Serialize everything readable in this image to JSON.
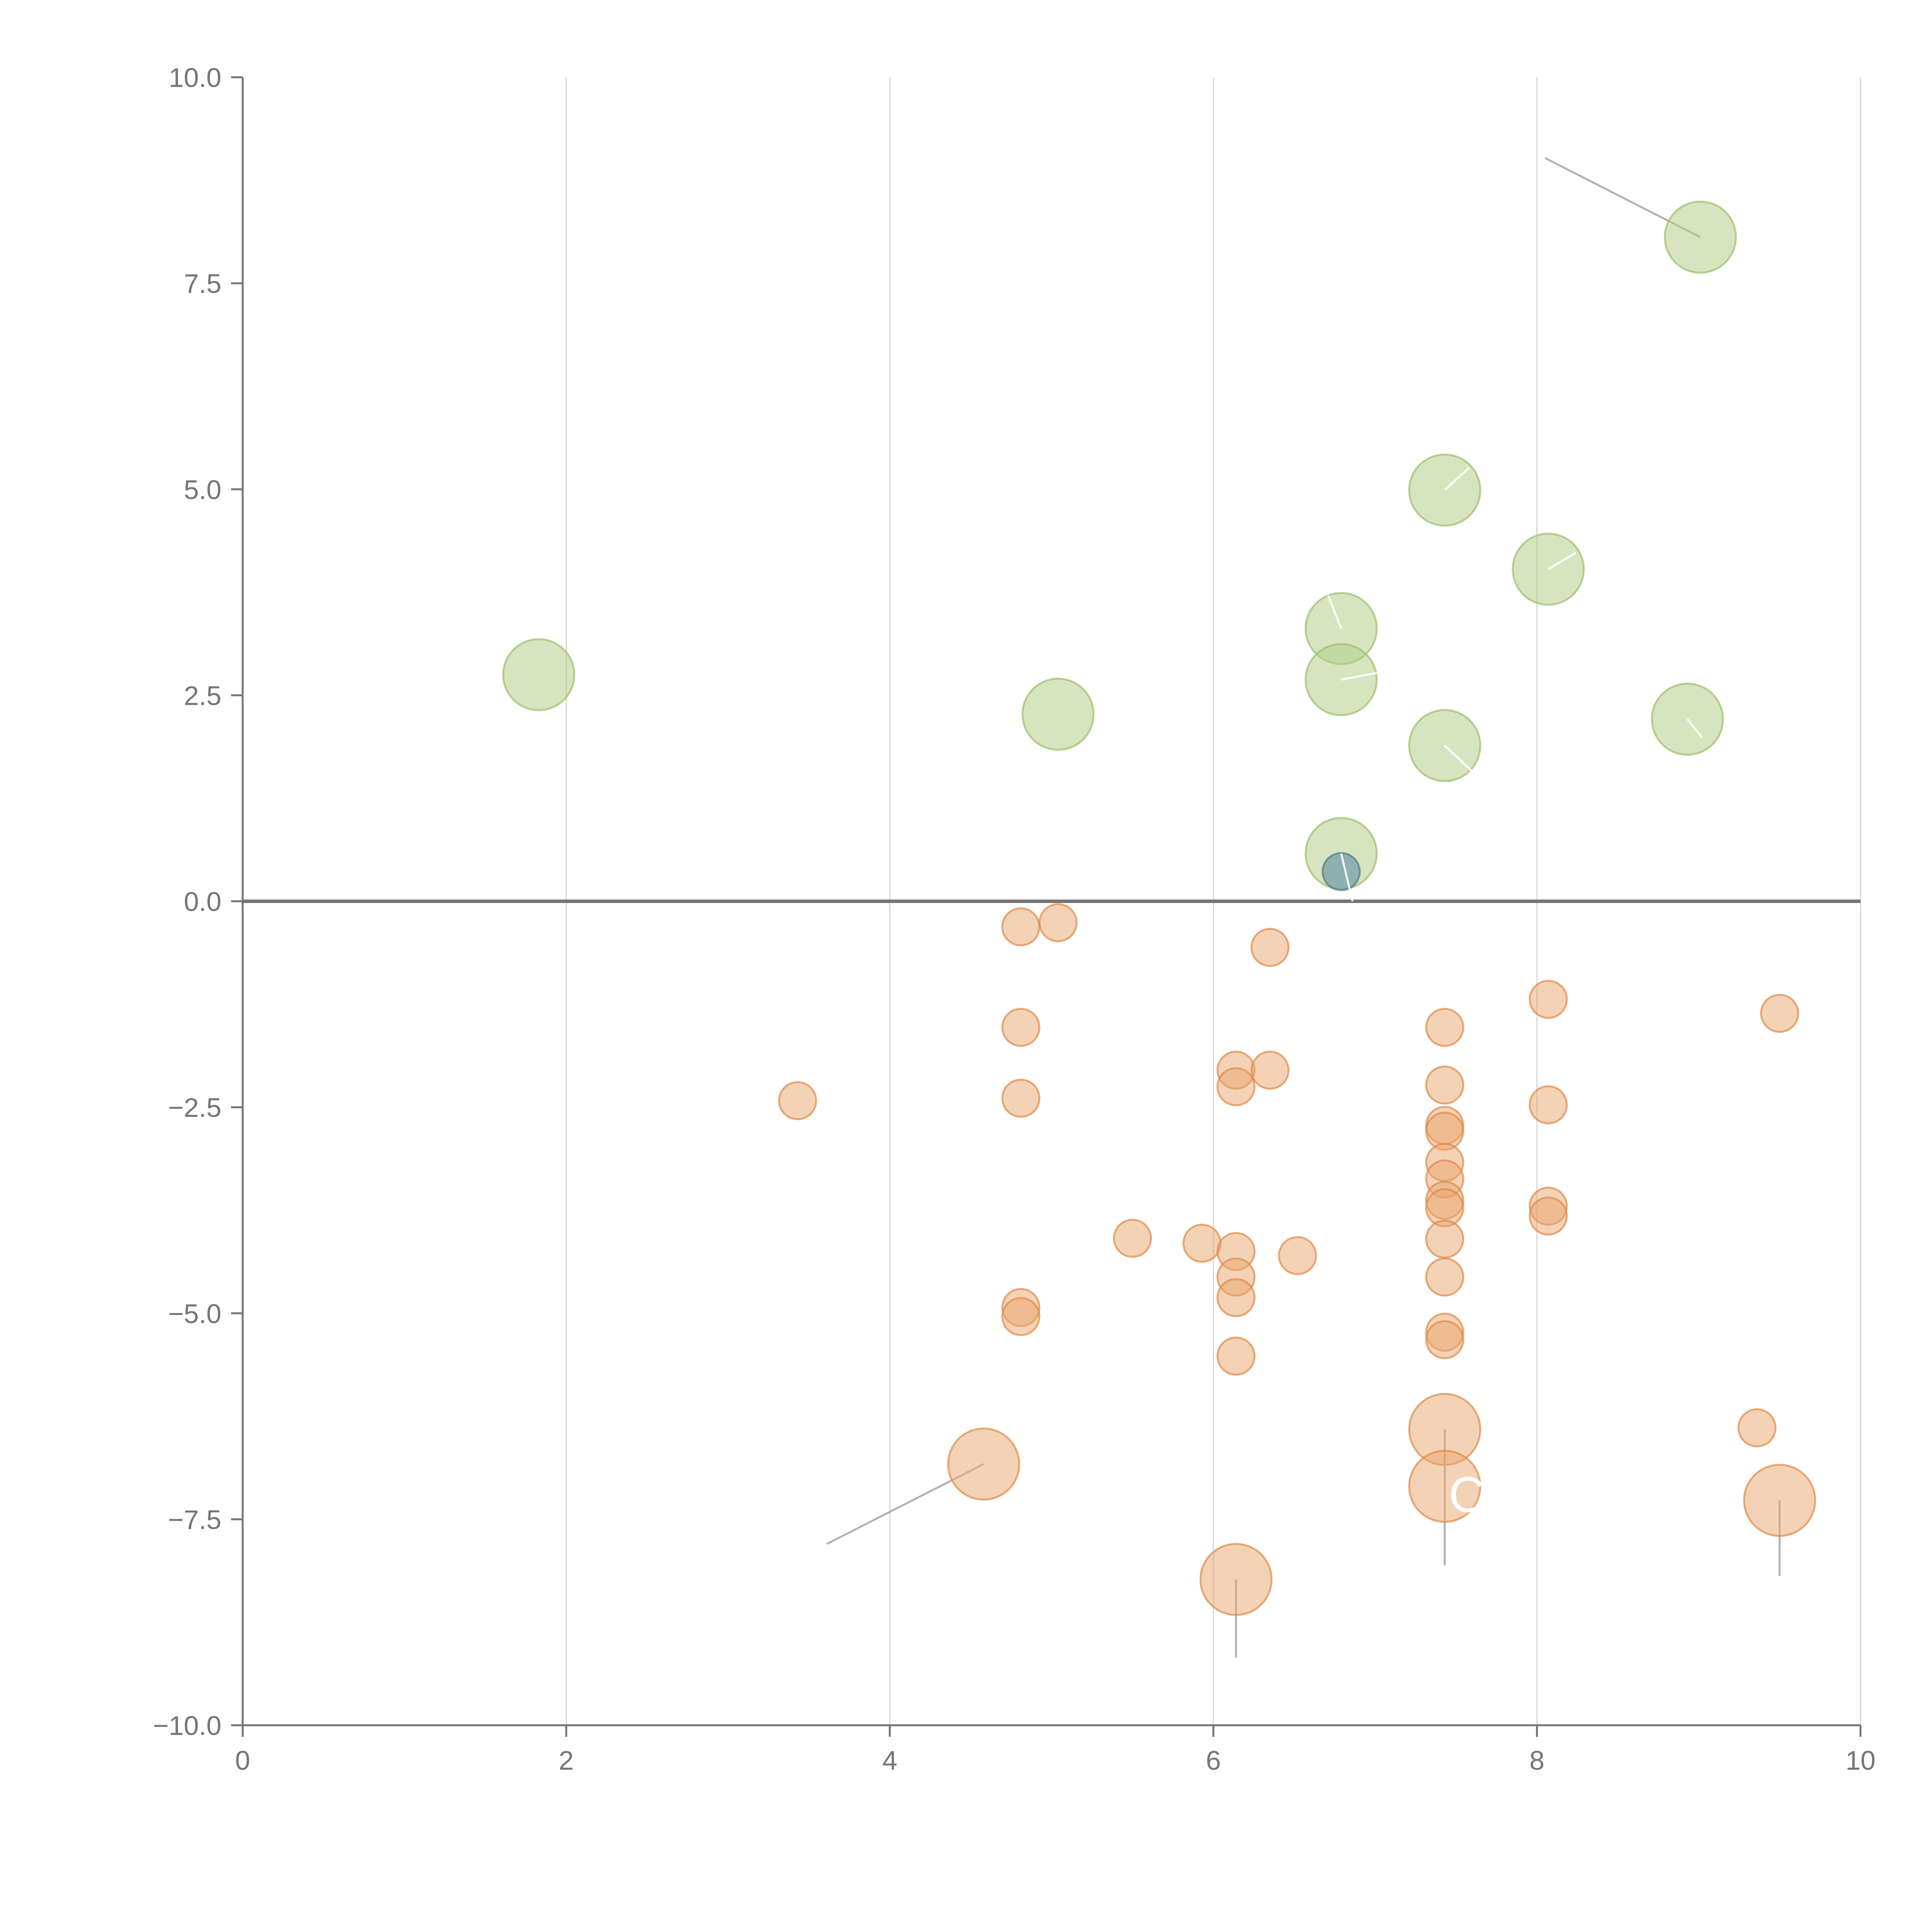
{
  "chart_data": {
    "type": "scatter",
    "subtype": "bubble",
    "title": "",
    "xlabel": "",
    "ylabel": "",
    "xlim": [
      0,
      10
    ],
    "ylim": [
      -10,
      10
    ],
    "x_ticks": [
      0,
      2,
      4,
      6,
      8,
      10
    ],
    "y_ticks": [
      10,
      7.5,
      5,
      2.5,
      0,
      -2.5,
      -5,
      -7.5,
      -10
    ],
    "x_tick_labels": [
      "0",
      "2",
      "4",
      "6",
      "8",
      "10"
    ],
    "y_tick_labels": [
      "10.0",
      "7.5",
      "5.0",
      "2.5",
      "0.0",
      "−2.5",
      "−5.0",
      "−7.5",
      "−10.0"
    ],
    "vertical_gridlines": true,
    "zero_line": true,
    "colors": {
      "positive": "#b5d08a",
      "positive_stroke": "#9cbf6b",
      "negative": "#e9a56e",
      "negative_stroke": "#de8a4a",
      "highlight": "#6f9aa6",
      "highlight_stroke": "#4f7a87",
      "axis": "#757575",
      "grid": "#d6d6d6",
      "leader": "#9e9e9e"
    },
    "series": [
      {
        "name": "positive",
        "points": [
          {
            "x": 1.83,
            "y": 2.75,
            "size": "large"
          },
          {
            "x": 5.04,
            "y": 2.27,
            "size": "large"
          },
          {
            "x": 6.79,
            "y": 3.31,
            "size": "large"
          },
          {
            "x": 6.79,
            "y": 2.69,
            "size": "large"
          },
          {
            "x": 6.79,
            "y": 0.58,
            "size": "large"
          },
          {
            "x": 7.43,
            "y": 4.99,
            "size": "large"
          },
          {
            "x": 7.43,
            "y": 1.89,
            "size": "large"
          },
          {
            "x": 8.07,
            "y": 4.03,
            "size": "large"
          },
          {
            "x": 8.93,
            "y": 2.21,
            "size": "large"
          },
          {
            "x": 9.01,
            "y": 8.06,
            "size": "large"
          }
        ]
      },
      {
        "name": "negative",
        "points": [
          {
            "x": 3.43,
            "y": -2.42,
            "size": "small"
          },
          {
            "x": 4.81,
            "y": -0.31,
            "size": "small"
          },
          {
            "x": 4.81,
            "y": -1.53,
            "size": "small"
          },
          {
            "x": 4.81,
            "y": -2.39,
            "size": "small"
          },
          {
            "x": 4.81,
            "y": -4.93,
            "size": "small"
          },
          {
            "x": 4.81,
            "y": -5.04,
            "size": "small"
          },
          {
            "x": 5.04,
            "y": -0.26,
            "size": "small"
          },
          {
            "x": 5.5,
            "y": -4.09,
            "size": "small"
          },
          {
            "x": 5.93,
            "y": -4.15,
            "size": "small"
          },
          {
            "x": 6.14,
            "y": -2.05,
            "size": "small"
          },
          {
            "x": 6.14,
            "y": -2.25,
            "size": "small"
          },
          {
            "x": 6.14,
            "y": -4.25,
            "size": "small"
          },
          {
            "x": 6.14,
            "y": -4.56,
            "size": "small"
          },
          {
            "x": 6.14,
            "y": -4.81,
            "size": "small"
          },
          {
            "x": 6.14,
            "y": -5.52,
            "size": "small"
          },
          {
            "x": 6.35,
            "y": -0.56,
            "size": "small"
          },
          {
            "x": 6.35,
            "y": -2.05,
            "size": "small"
          },
          {
            "x": 6.52,
            "y": -4.3,
            "size": "small"
          },
          {
            "x": 7.43,
            "y": -1.53,
            "size": "small"
          },
          {
            "x": 7.43,
            "y": -2.23,
            "size": "small"
          },
          {
            "x": 7.43,
            "y": -2.72,
            "size": "small"
          },
          {
            "x": 7.43,
            "y": -2.79,
            "size": "small"
          },
          {
            "x": 7.43,
            "y": -3.17,
            "size": "small"
          },
          {
            "x": 7.43,
            "y": -3.37,
            "size": "small"
          },
          {
            "x": 7.43,
            "y": -3.63,
            "size": "small"
          },
          {
            "x": 7.43,
            "y": -3.72,
            "size": "small"
          },
          {
            "x": 7.43,
            "y": -4.1,
            "size": "small"
          },
          {
            "x": 7.43,
            "y": -4.56,
            "size": "small"
          },
          {
            "x": 7.43,
            "y": -5.23,
            "size": "small"
          },
          {
            "x": 7.43,
            "y": -5.32,
            "size": "small"
          },
          {
            "x": 8.07,
            "y": -1.19,
            "size": "small"
          },
          {
            "x": 8.07,
            "y": -2.47,
            "size": "small"
          },
          {
            "x": 8.07,
            "y": -3.7,
            "size": "small"
          },
          {
            "x": 8.07,
            "y": -3.82,
            "size": "small"
          },
          {
            "x": 9.36,
            "y": -6.39,
            "size": "small"
          },
          {
            "x": 9.5,
            "y": -1.36,
            "size": "small"
          },
          {
            "x": 4.58,
            "y": -6.83,
            "size": "large"
          },
          {
            "x": 6.14,
            "y": -8.23,
            "size": "large"
          },
          {
            "x": 7.43,
            "y": -6.41,
            "size": "large"
          },
          {
            "x": 7.43,
            "y": -7.1,
            "size": "large"
          },
          {
            "x": 9.5,
            "y": -7.27,
            "size": "large"
          }
        ]
      },
      {
        "name": "highlight",
        "points": [
          {
            "x": 6.79,
            "y": 0.36,
            "size": "small"
          }
        ]
      }
    ],
    "leader_lines": [
      {
        "from": [
          9.01,
          8.06
        ],
        "to": [
          8.05,
          9.02
        ],
        "color": "leader"
      },
      {
        "from": [
          4.58,
          -6.83
        ],
        "to": [
          3.61,
          -7.8
        ],
        "color": "leader"
      },
      {
        "from": [
          6.14,
          -8.23
        ],
        "to": [
          6.14,
          -9.18
        ],
        "color": "leader"
      },
      {
        "from": [
          7.43,
          -6.41
        ],
        "to": [
          7.43,
          -8.06
        ],
        "color": "leader"
      },
      {
        "from": [
          9.5,
          -7.27
        ],
        "to": [
          9.5,
          -8.19
        ],
        "color": "leader"
      },
      {
        "from": [
          7.43,
          4.99
        ],
        "to": [
          7.58,
          5.26
        ],
        "color": "white"
      },
      {
        "from": [
          8.07,
          4.03
        ],
        "to": [
          8.24,
          4.23
        ],
        "color": "white"
      },
      {
        "from": [
          6.79,
          3.31
        ],
        "to": [
          6.71,
          3.71
        ],
        "color": "white"
      },
      {
        "from": [
          6.79,
          2.69
        ],
        "to": [
          7.06,
          2.79
        ],
        "color": "white"
      },
      {
        "from": [
          7.43,
          1.89
        ],
        "to": [
          7.62,
          1.54
        ],
        "color": "white"
      },
      {
        "from": [
          8.93,
          2.21
        ],
        "to": [
          9.02,
          1.99
        ],
        "color": "white"
      },
      {
        "from": [
          6.79,
          0.58
        ],
        "to": [
          6.86,
          0.0
        ],
        "color": "white"
      }
    ],
    "annotations": [
      {
        "text": "C",
        "x": 7.43,
        "y": -7.2
      }
    ]
  }
}
